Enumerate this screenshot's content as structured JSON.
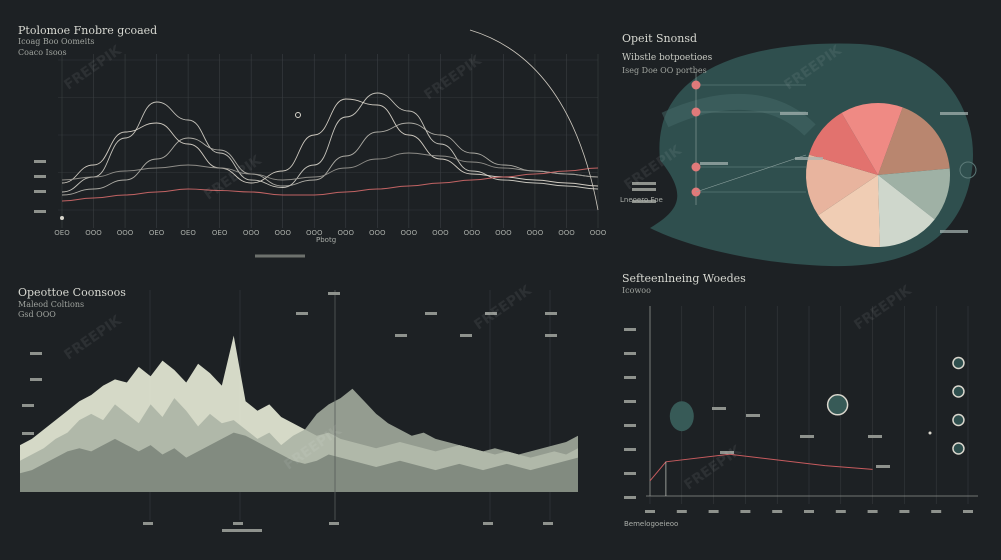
{
  "theme": {
    "bg": "#1d2124",
    "grid": "#3a3f42",
    "pie_bg": "#2f4f4e",
    "accent_red": "#e07a7a",
    "line_light": "#d9d6cd"
  },
  "top_left": {
    "title": "Ptolomoe Fnobre gcoaed",
    "sub1": "Icoag Boo Oomeits",
    "sub2": "Coaco Isoos",
    "x_ticks": [
      "OEO",
      "OOO",
      "OOO",
      "OEO",
      "OEO",
      "OEO",
      "OOO",
      "OOO",
      "OOO",
      "OOO",
      "OOO",
      "OOO",
      "OOO",
      "OOO",
      "OOO",
      "OOO",
      "OOO",
      "OOO"
    ],
    "x_label": "Pbotg"
  },
  "top_right": {
    "title": "Opeit Snonsd",
    "sub1": "Wibstle botpoetioes",
    "sub2": "Iseg Doe OO portbes",
    "callout": "Lneoero Foe"
  },
  "bottom_left": {
    "title": "Opeottoe Coonsoos",
    "sub1": "Maleod Coltions",
    "sub2": "Gsd OOO"
  },
  "bottom_right": {
    "title": "Sefteenlneing Woedes",
    "sub1": "Icowoo",
    "sub2": "Bemelogoeieoo"
  },
  "chart_data": [
    {
      "type": "line",
      "title": "Ptolomoe Fnobre gcoaed",
      "x": [
        0,
        1,
        2,
        3,
        4,
        5,
        6,
        7,
        8,
        9,
        10,
        11,
        12,
        13,
        14,
        15,
        16,
        17
      ],
      "series": [
        {
          "values": [
            12,
            22,
            48,
            72,
            60,
            38,
            20,
            15,
            30,
            62,
            78,
            66,
            44,
            26,
            20,
            18,
            16,
            14
          ]
        },
        {
          "values": [
            18,
            30,
            52,
            58,
            44,
            28,
            18,
            26,
            50,
            74,
            70,
            50,
            34,
            24,
            22,
            20,
            18,
            16
          ]
        },
        {
          "values": [
            10,
            14,
            20,
            34,
            48,
            40,
            24,
            16,
            20,
            36,
            52,
            58,
            50,
            38,
            30,
            26,
            24,
            22
          ]
        },
        {
          "values": [
            20,
            22,
            26,
            28,
            30,
            28,
            24,
            20,
            22,
            28,
            34,
            38,
            36,
            32,
            28,
            26,
            24,
            22
          ]
        },
        {
          "values": [
            6,
            8,
            10,
            12,
            14,
            13,
            12,
            10,
            10,
            12,
            14,
            16,
            18,
            20,
            22,
            24,
            26,
            28
          ]
        }
      ],
      "ylim": [
        0,
        100
      ]
    },
    {
      "type": "pie",
      "title": "Opeit Snonsd",
      "values": [
        18,
        12,
        14,
        16,
        14,
        12,
        14
      ],
      "colors": [
        "#b9866f",
        "#9fb1a5",
        "#cfd7cc",
        "#f0cdb4",
        "#e8b49e",
        "#e2726e",
        "#ef8a84"
      ]
    },
    {
      "type": "area",
      "title": "Opeottoe Coonsoos",
      "x": [
        0,
        1,
        2,
        3,
        4,
        5,
        6,
        7,
        8,
        9,
        10,
        11,
        12,
        13,
        14,
        15,
        16,
        17,
        18,
        19,
        20,
        21,
        22,
        23,
        24,
        25,
        26,
        27,
        28,
        29,
        30,
        31,
        32,
        33,
        34,
        35,
        36,
        37,
        38,
        39,
        40,
        41,
        42,
        43,
        44,
        45,
        46,
        47
      ],
      "series": [
        {
          "values": [
            30,
            34,
            40,
            46,
            52,
            58,
            62,
            68,
            72,
            70,
            80,
            74,
            84,
            78,
            70,
            82,
            76,
            68,
            100,
            58,
            52,
            56,
            48,
            44,
            40,
            36,
            38,
            34,
            32,
            30,
            28,
            30,
            32,
            30,
            28,
            26,
            28,
            30,
            28,
            26,
            24,
            26,
            24,
            22,
            24,
            26,
            24,
            28
          ]
        },
        {
          "values": [
            20,
            24,
            28,
            34,
            38,
            46,
            50,
            46,
            56,
            50,
            44,
            56,
            48,
            60,
            52,
            42,
            50,
            44,
            46,
            40,
            34,
            38,
            30,
            36,
            40,
            50,
            56,
            60,
            66,
            58,
            50,
            44,
            40,
            36,
            38,
            34,
            32,
            30,
            28,
            26,
            28,
            26,
            24,
            26,
            28,
            30,
            32,
            36
          ]
        },
        {
          "values": [
            12,
            14,
            18,
            22,
            26,
            28,
            26,
            30,
            34,
            30,
            26,
            30,
            24,
            28,
            22,
            26,
            30,
            34,
            38,
            36,
            32,
            28,
            24,
            20,
            18,
            20,
            24,
            22,
            20,
            18,
            16,
            18,
            20,
            18,
            16,
            14,
            16,
            18,
            16,
            14,
            16,
            18,
            16,
            14,
            16,
            18,
            20,
            22
          ]
        }
      ],
      "ylim": [
        0,
        110
      ]
    },
    {
      "type": "scatter",
      "title": "Sefteenlneing Woedes",
      "points": [
        {
          "x": 1.0,
          "y": 42
        },
        {
          "x": 5.9,
          "y": 48
        },
        {
          "x": 9.7,
          "y": 25
        },
        {
          "x": 9.7,
          "y": 40
        },
        {
          "x": 9.7,
          "y": 55
        },
        {
          "x": 9.7,
          "y": 70
        }
      ],
      "line": [
        {
          "x": 0,
          "y": 8
        },
        {
          "x": 0.5,
          "y": 18
        },
        {
          "x": 2.5,
          "y": 22
        },
        {
          "x": 5.5,
          "y": 16
        },
        {
          "x": 7.0,
          "y": 14
        }
      ],
      "xlim": [
        0,
        10
      ],
      "ylim": [
        0,
        100
      ]
    }
  ]
}
